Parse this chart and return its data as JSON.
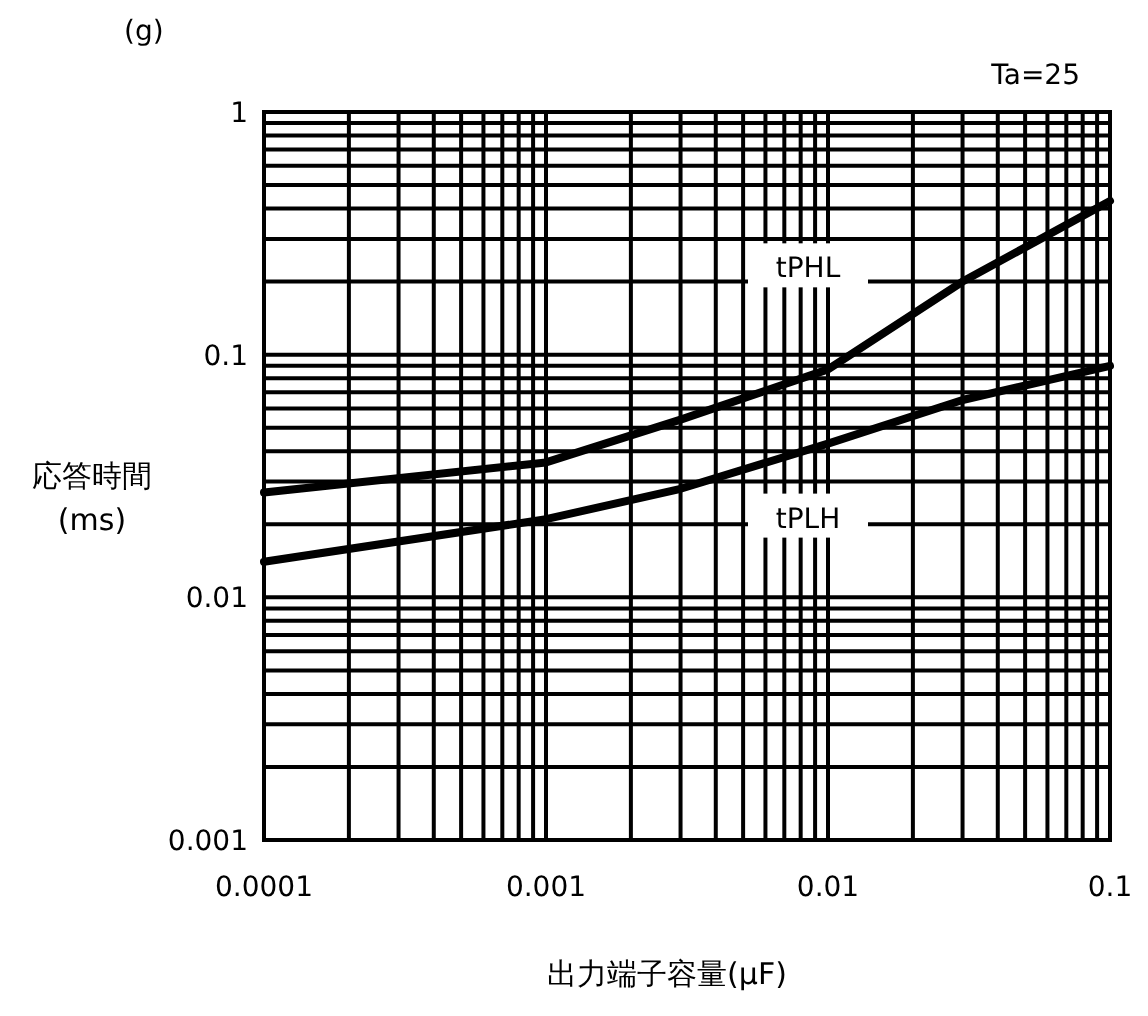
{
  "chart_data": {
    "type": "line",
    "title": "(g)",
    "annotations": [
      "Ta=25"
    ],
    "xlabel": "出力端子容量(μF)",
    "ylabel": "応答時間\n(ms)",
    "log": "xy",
    "grid": true,
    "xlim": [
      0.0001,
      0.1
    ],
    "ylim": [
      0.001,
      1
    ],
    "xticks": [
      0.0001,
      0.001,
      0.01,
      0.1
    ],
    "yticks": [
      0.001,
      0.01,
      0.1,
      1
    ],
    "series": [
      {
        "name": "tPHL",
        "color": "#000000",
        "x": [
          0.0001,
          0.001,
          0.003,
          0.01,
          0.03,
          0.1
        ],
        "values": [
          0.027,
          0.036,
          0.054,
          0.087,
          0.2,
          0.43
        ]
      },
      {
        "name": "tPLH",
        "color": "#000000",
        "x": [
          0.0001,
          0.001,
          0.003,
          0.01,
          0.03,
          0.1
        ],
        "values": [
          0.014,
          0.021,
          0.028,
          0.043,
          0.065,
          0.09
        ]
      }
    ]
  }
}
